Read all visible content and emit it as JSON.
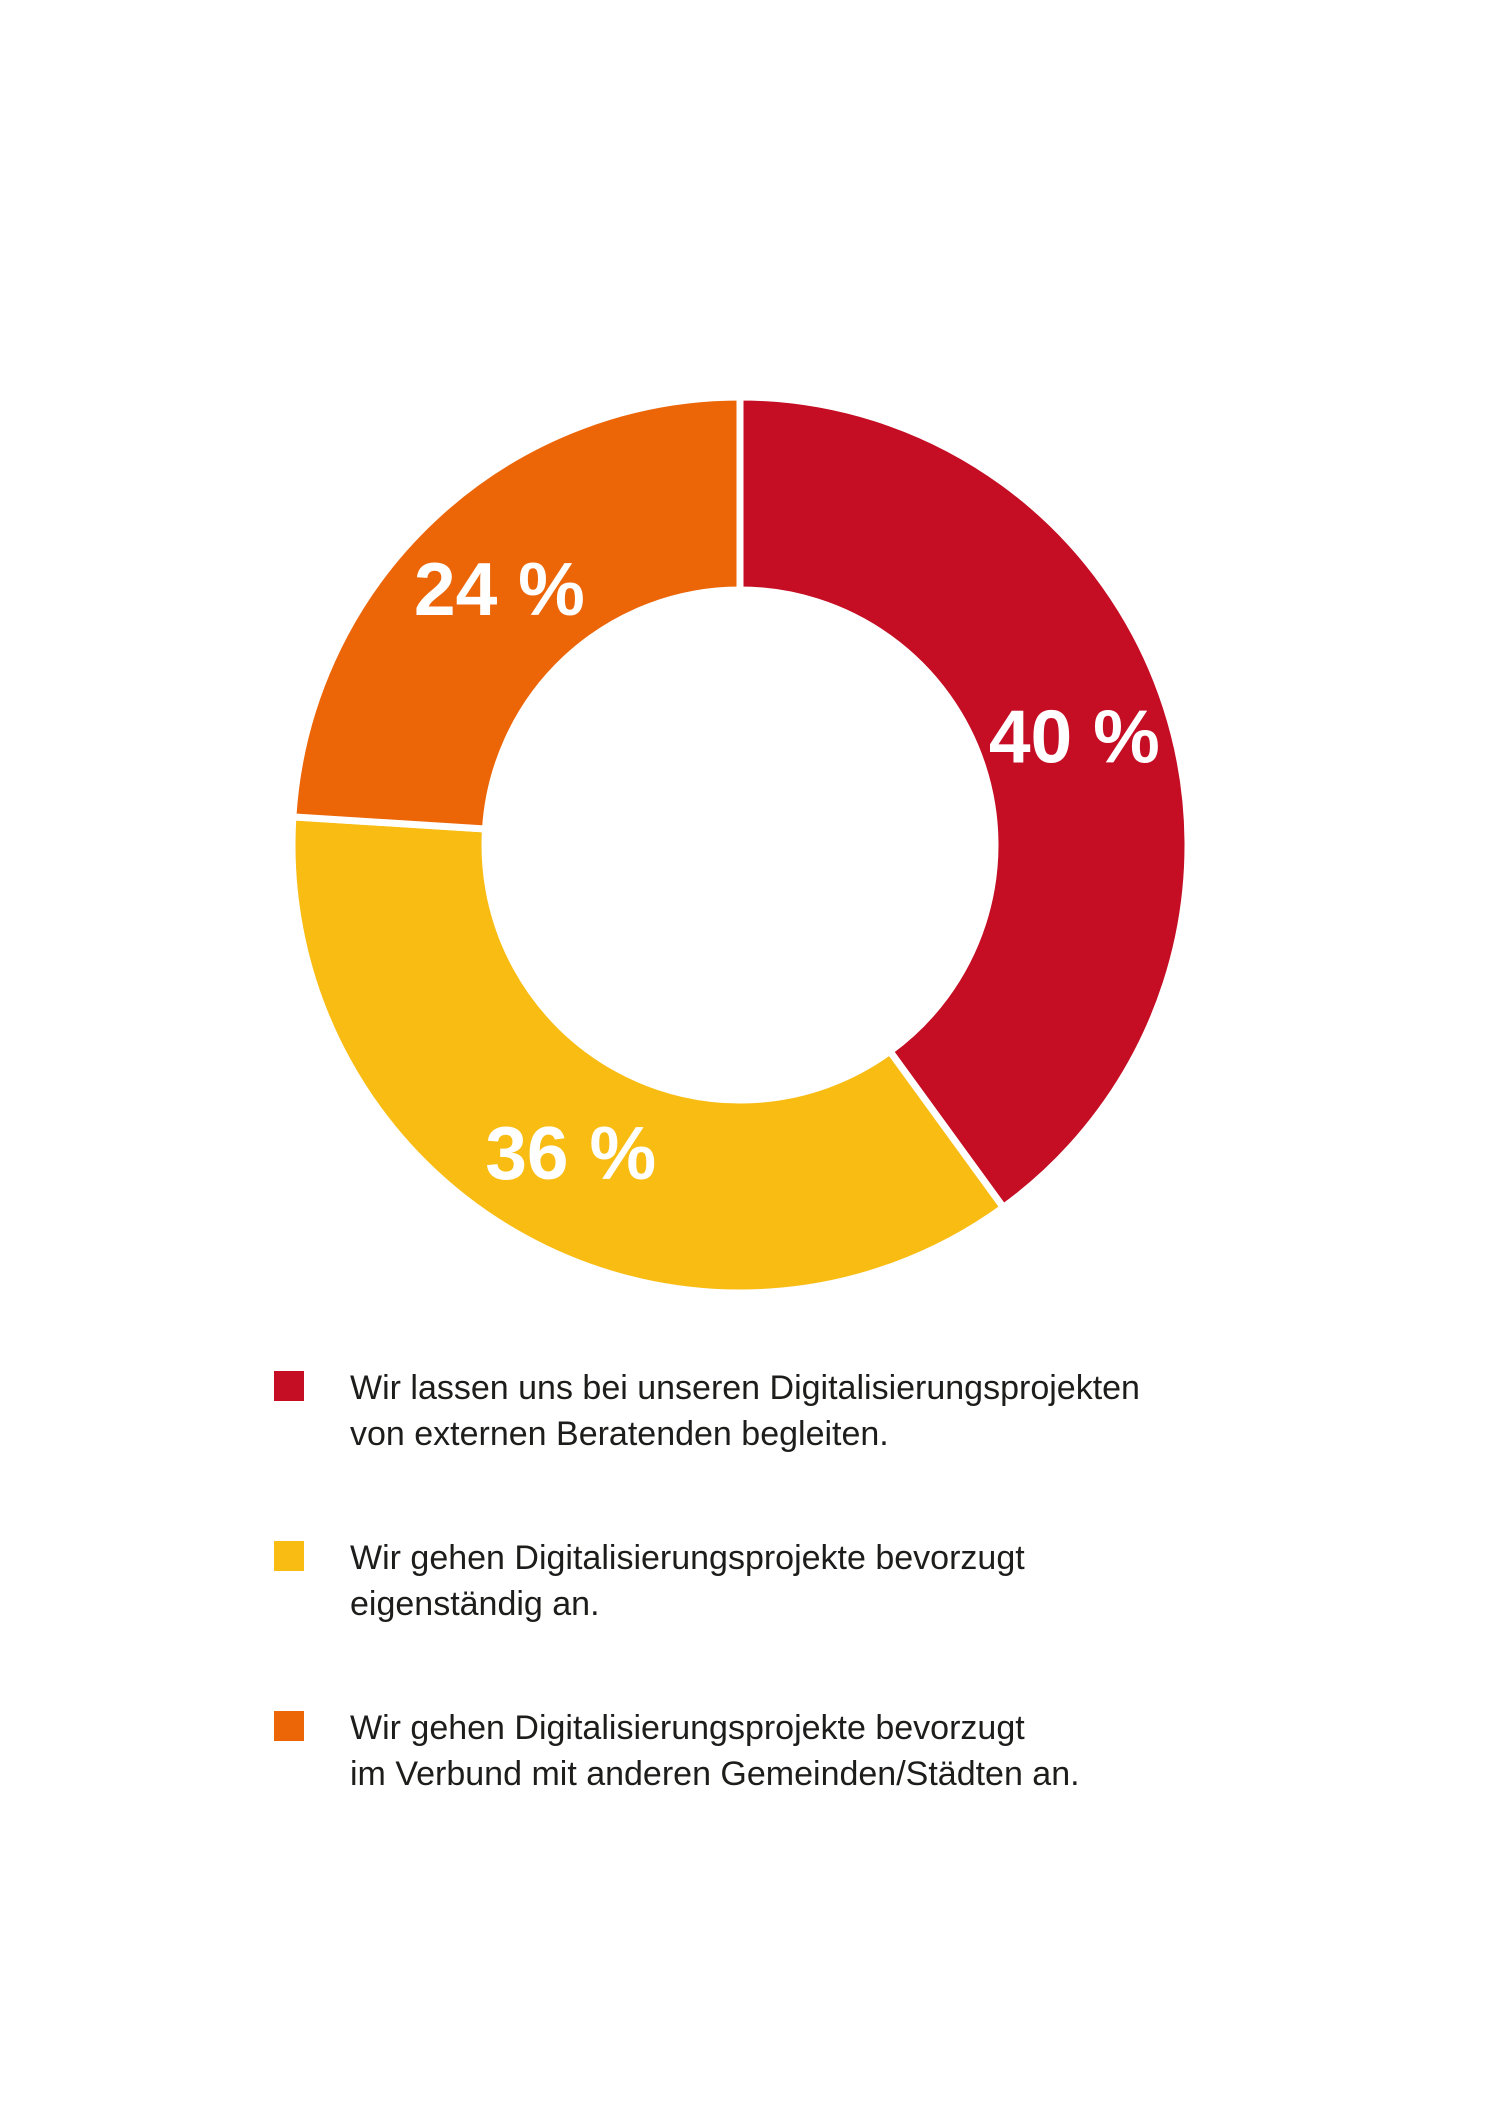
{
  "chart_data": {
    "type": "pie",
    "subtype": "donut",
    "title": "",
    "values": [
      40,
      36,
      24
    ],
    "slice_labels": [
      "40 %",
      "36 %",
      "24 %"
    ],
    "colors": [
      "#C50D24",
      "#F8BC12",
      "#EC6608"
    ],
    "categories": [
      "Wir lassen uns bei unseren Digitalisierungsprojekten von externen Beratenden begleiten.",
      "Wir gehen Digitalisierungsprojekte bevorzugt eigenständig an.",
      "Wir gehen Digitalisierungsprojekte bevorzugt im Verbund mit anderen Gemeinden/Städten an."
    ],
    "start_angle_deg": 0,
    "direction": "clockwise",
    "inner_radius_ratio": 0.57,
    "slice_gap_color": "#FFFFFF",
    "slice_label_color": "#FFFFFF",
    "slice_label_font_px": 75,
    "legend_position": "bottom",
    "background": "#FFFFFF"
  },
  "legend": {
    "items": [
      {
        "swatch_color": "#C50D24",
        "line1": "Wir lassen uns bei unseren Digitalisierungsprojekten",
        "line2": "von externen Beratenden begleiten."
      },
      {
        "swatch_color": "#F8BC12",
        "line1": "Wir gehen Digitalisierungsprojekte bevorzugt",
        "line2": "eigenständig an."
      },
      {
        "swatch_color": "#EC6608",
        "line1": "Wir gehen Digitalisierungsprojekte bevorzugt",
        "line2": "im Verbund mit anderen Gemeinden/Städten an."
      }
    ]
  }
}
